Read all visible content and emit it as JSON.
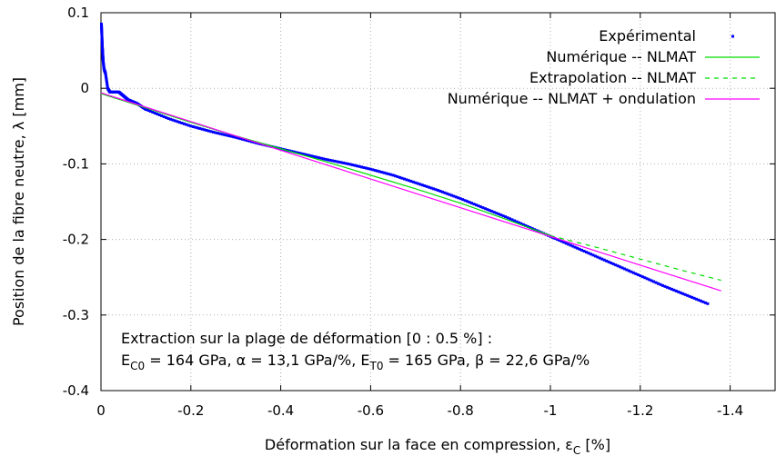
{
  "chart_data": {
    "type": "line",
    "xlabel": "Déformation sur la face en compression, ε",
    "xlabel_sub": "C",
    "xlabel_unit": " [%]",
    "ylabel": "Position de la fibre neutre, λ [mm]",
    "xlim": [
      0,
      -1.5
    ],
    "ylim": [
      -0.4,
      0.1
    ],
    "x_reversed": true,
    "grid": true,
    "grid_style": "dotted",
    "legend_position": "top-right",
    "xticks": [
      0,
      -0.2,
      -0.4,
      -0.6,
      -0.8,
      -1,
      -1.2,
      -1.4
    ],
    "xtick_labels": [
      "0",
      "-0.2",
      "-0.4",
      "-0.6",
      "-0.8",
      "-1",
      "-1.2",
      "-1.4"
    ],
    "yticks": [
      0.1,
      0,
      -0.1,
      -0.2,
      -0.3,
      -0.4
    ],
    "ytick_labels": [
      "0.1",
      "0",
      "-0.1",
      "-0.2",
      "-0.3",
      "-0.4"
    ],
    "series": [
      {
        "name": "Expérimental",
        "style": "points",
        "color": "#0000ff",
        "x": [
          -0.001,
          -0.002,
          -0.003,
          -0.004,
          -0.005,
          -0.007,
          -0.01,
          -0.015,
          -0.02,
          -0.03,
          -0.04,
          -0.05,
          -0.06,
          -0.08,
          -0.1,
          -0.15,
          -0.2,
          -0.25,
          -0.3,
          -0.35,
          -0.4,
          -0.45,
          -0.5,
          -0.55,
          -0.6,
          -0.65,
          -0.7,
          -0.75,
          -0.8,
          -0.85,
          -0.9,
          -0.95,
          -1.0,
          -1.05,
          -1.1,
          -1.15,
          -1.2,
          -1.25,
          -1.3,
          -1.35
        ],
        "y": [
          0.085,
          0.07,
          0.055,
          0.045,
          0.035,
          0.025,
          0.02,
          0.0,
          -0.005,
          -0.005,
          -0.005,
          -0.01,
          -0.015,
          -0.02,
          -0.028,
          -0.04,
          -0.05,
          -0.058,
          -0.065,
          -0.073,
          -0.08,
          -0.087,
          -0.094,
          -0.1,
          -0.107,
          -0.115,
          -0.125,
          -0.135,
          -0.146,
          -0.158,
          -0.17,
          -0.183,
          -0.196,
          -0.209,
          -0.222,
          -0.235,
          -0.248,
          -0.261,
          -0.273,
          -0.285
        ]
      },
      {
        "name": "Numérique -- NLMAT",
        "style": "line",
        "color": "#00dd00",
        "x": [
          0,
          -0.1,
          -0.2,
          -0.3,
          -0.4,
          -0.5,
          -0.6,
          -0.7,
          -0.8,
          -0.9,
          -1.0
        ],
        "y": [
          -0.007,
          -0.026,
          -0.045,
          -0.063,
          -0.08,
          -0.097,
          -0.115,
          -0.133,
          -0.152,
          -0.173,
          -0.195
        ]
      },
      {
        "name": "Extrapolation -- NLMAT",
        "style": "dashed",
        "color": "#00dd00",
        "x": [
          -1.0,
          -1.1,
          -1.2,
          -1.3,
          -1.38
        ],
        "y": [
          -0.195,
          -0.21,
          -0.226,
          -0.242,
          -0.254
        ]
      },
      {
        "name": "Numérique -- NLMAT + ondulation",
        "style": "line",
        "color": "#ff00ff",
        "x": [
          0,
          -0.2,
          -0.4,
          -0.6,
          -0.8,
          -1.0,
          -1.2,
          -1.38
        ],
        "y": [
          -0.006,
          -0.044,
          -0.082,
          -0.12,
          -0.158,
          -0.196,
          -0.234,
          -0.268
        ]
      }
    ],
    "annotation": {
      "line1": "Extraction sur la plage de déformation [0 : 0.5 %] :",
      "line2_parts": [
        {
          "text": "E",
          "sub": "C0",
          "rest": " = 164 GPa, α = 13,1 GPa/%, E"
        },
        {
          "text": "",
          "sub": "T0",
          "rest": " = 165 GPa, β = 22,6 GPa/%"
        }
      ]
    }
  }
}
